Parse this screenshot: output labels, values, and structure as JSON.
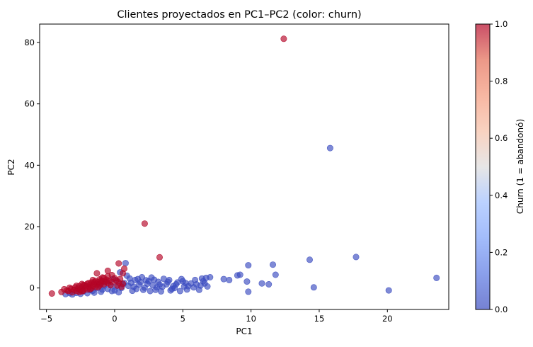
{
  "chart_data": {
    "type": "scatter",
    "title": "Clientes proyectados en PC1–PC2 (color: churn)",
    "xlabel": "PC1",
    "ylabel": "PC2",
    "xlim": [
      -5.5,
      24.5
    ],
    "ylim": [
      -7,
      86
    ],
    "xticks": [
      -5,
      0,
      5,
      10,
      15,
      20
    ],
    "yticks": [
      0,
      20,
      40,
      60,
      80
    ],
    "grid": false,
    "colormap": "coolwarm",
    "point_alpha": 0.65,
    "colorbar": {
      "label": "Churn (1 = abandonó)",
      "range": [
        0,
        1
      ],
      "ticks": [
        "0.0",
        "0.2",
        "0.4",
        "0.6",
        "0.8",
        "1.0"
      ]
    },
    "churn_1_color": "#b40426",
    "churn_0_color": "#3b4cc0",
    "points_churn_1": [
      [
        12.4,
        81.2
      ],
      [
        2.2,
        21.0
      ],
      [
        3.3,
        10.0
      ],
      [
        0.3,
        8.0
      ],
      [
        0.7,
        6.3
      ],
      [
        0.6,
        4.8
      ],
      [
        -0.5,
        5.6
      ],
      [
        -1.3,
        4.8
      ],
      [
        -4.6,
        -1.8
      ],
      [
        -3.9,
        -1.3
      ],
      [
        -3.5,
        -0.8
      ],
      [
        -3.2,
        -0.3
      ],
      [
        -2.9,
        0.2
      ],
      [
        -2.6,
        0.6
      ],
      [
        -2.3,
        1.0
      ],
      [
        -2.0,
        1.4
      ],
      [
        -1.7,
        1.8
      ],
      [
        -1.4,
        2.3
      ],
      [
        -1.1,
        2.8
      ],
      [
        -0.8,
        3.3
      ],
      [
        -0.5,
        3.8
      ],
      [
        -0.2,
        4.2
      ],
      [
        -3.4,
        -1.0
      ],
      [
        -3.0,
        -0.6
      ],
      [
        -2.7,
        -0.2
      ],
      [
        -2.4,
        0.2
      ],
      [
        -2.1,
        0.6
      ],
      [
        -1.8,
        1.0
      ],
      [
        -1.5,
        1.4
      ],
      [
        -1.2,
        1.9
      ],
      [
        -0.9,
        2.3
      ],
      [
        -0.6,
        2.7
      ],
      [
        -3.1,
        -1.4
      ],
      [
        -2.8,
        -1.0
      ],
      [
        -2.5,
        -0.6
      ],
      [
        -2.2,
        -0.2
      ],
      [
        -1.9,
        0.3
      ],
      [
        -1.6,
        0.7
      ],
      [
        -1.3,
        1.1
      ],
      [
        -1.0,
        1.5
      ],
      [
        -0.7,
        2.0
      ],
      [
        -0.4,
        2.4
      ],
      [
        -2.6,
        -1.3
      ],
      [
        -2.3,
        -0.9
      ],
      [
        -2.0,
        -0.5
      ],
      [
        -1.7,
        -0.1
      ],
      [
        -1.4,
        0.3
      ],
      [
        -1.1,
        0.8
      ],
      [
        -0.8,
        1.2
      ],
      [
        -0.5,
        1.6
      ],
      [
        -0.2,
        2.0
      ],
      [
        0.1,
        2.5
      ],
      [
        0.4,
        2.9
      ],
      [
        -2.2,
        0.9
      ],
      [
        -1.9,
        1.6
      ],
      [
        -1.5,
        2.0
      ],
      [
        -1.0,
        2.4
      ],
      [
        0.0,
        3.2
      ],
      [
        0.3,
        1.8
      ],
      [
        0.6,
        1.4
      ],
      [
        -3.7,
        -0.4
      ],
      [
        -3.3,
        0.1
      ],
      [
        -2.8,
        0.7
      ],
      [
        -2.4,
        1.3
      ],
      [
        -1.6,
        2.6
      ],
      [
        -0.9,
        3.4
      ],
      [
        0.2,
        0.8
      ],
      [
        0.5,
        0.4
      ],
      [
        -0.3,
        0.9
      ],
      [
        -1.2,
        0.3
      ],
      [
        -1.8,
        -0.4
      ],
      [
        -2.4,
        -1.1
      ]
    ],
    "points_churn_0": [
      [
        23.6,
        3.3
      ],
      [
        20.1,
        -0.8
      ],
      [
        17.7,
        10.1
      ],
      [
        15.8,
        45.6
      ],
      [
        14.6,
        0.2
      ],
      [
        14.3,
        9.2
      ],
      [
        11.8,
        4.3
      ],
      [
        11.6,
        7.6
      ],
      [
        11.3,
        1.2
      ],
      [
        10.8,
        1.5
      ],
      [
        9.8,
        7.4
      ],
      [
        9.8,
        -1.2
      ],
      [
        9.7,
        2.1
      ],
      [
        9.2,
        4.3
      ],
      [
        9.0,
        4.1
      ],
      [
        8.4,
        2.6
      ],
      [
        8.0,
        2.9
      ],
      [
        7.0,
        3.5
      ],
      [
        6.7,
        3.3
      ],
      [
        6.6,
        1.5
      ],
      [
        6.8,
        0.5
      ],
      [
        6.4,
        3.1
      ],
      [
        6.2,
        -0.6
      ],
      [
        6.3,
        0.8
      ],
      [
        6.0,
        1.2
      ],
      [
        5.8,
        0.2
      ],
      [
        5.4,
        0.6
      ],
      [
        5.3,
        -0.5
      ],
      [
        5.0,
        2.2
      ],
      [
        5.1,
        0.5
      ],
      [
        4.9,
        2.9
      ],
      [
        4.6,
        1.8
      ],
      [
        4.3,
        0.6
      ],
      [
        4.1,
        -0.8
      ],
      [
        3.8,
        1.2
      ],
      [
        3.5,
        0.4
      ],
      [
        3.2,
        2.0
      ],
      [
        3.0,
        -0.6
      ],
      [
        2.8,
        0.9
      ],
      [
        2.5,
        2.2
      ],
      [
        2.2,
        0.1
      ],
      [
        2.0,
        3.5
      ],
      [
        1.8,
        1.1
      ],
      [
        1.5,
        2.6
      ],
      [
        1.3,
        -0.9
      ],
      [
        1.0,
        0.7
      ],
      [
        0.8,
        8.1
      ],
      [
        0.9,
        4.0
      ],
      [
        0.7,
        1.6
      ],
      [
        0.5,
        0.0
      ],
      [
        0.2,
        2.2
      ],
      [
        0.0,
        -0.8
      ],
      [
        -0.3,
        1.0
      ],
      [
        -0.5,
        -0.3
      ],
      [
        -0.8,
        0.6
      ],
      [
        -1.0,
        -1.2
      ],
      [
        -1.3,
        0.0
      ],
      [
        -1.5,
        -1.5
      ],
      [
        -1.8,
        -0.7
      ],
      [
        -2.0,
        -1.7
      ],
      [
        -2.3,
        -1.1
      ],
      [
        -2.5,
        -1.9
      ],
      [
        -2.8,
        -1.6
      ],
      [
        -3.1,
        -2.1
      ],
      [
        -3.3,
        -1.7
      ],
      [
        -3.6,
        -2.0
      ],
      [
        1.6,
        -0.3
      ],
      [
        2.6,
        -1.0
      ],
      [
        3.4,
        -1.1
      ],
      [
        4.4,
        0.0
      ],
      [
        4.8,
        -1.0
      ],
      [
        5.6,
        1.5
      ],
      [
        5.9,
        2.6
      ],
      [
        6.5,
        2.2
      ],
      [
        3.6,
        3.0
      ],
      [
        2.9,
        2.7
      ],
      [
        1.9,
        1.9
      ],
      [
        1.1,
        3.1
      ],
      [
        0.4,
        5.1
      ],
      [
        -0.1,
        3.0
      ],
      [
        -0.6,
        2.0
      ],
      [
        -1.1,
        1.3
      ],
      [
        2.4,
        1.4
      ],
      [
        3.9,
        2.0
      ],
      [
        4.5,
        1.2
      ],
      [
        5.2,
        1.6
      ],
      [
        0.3,
        -1.4
      ],
      [
        1.4,
        0.4
      ],
      [
        2.1,
        -0.6
      ],
      [
        3.1,
        0.2
      ],
      [
        4.2,
        -0.3
      ],
      [
        0.6,
        1.2
      ],
      [
        -0.2,
        -1.0
      ],
      [
        1.7,
        2.9
      ],
      [
        2.7,
        3.4
      ],
      [
        -1.6,
        -0.9
      ],
      [
        -0.9,
        -0.5
      ],
      [
        0.1,
        0.5
      ],
      [
        1.2,
        1.7
      ],
      [
        2.3,
        2.5
      ],
      [
        3.3,
        1.1
      ],
      [
        4.0,
        2.6
      ]
    ]
  }
}
